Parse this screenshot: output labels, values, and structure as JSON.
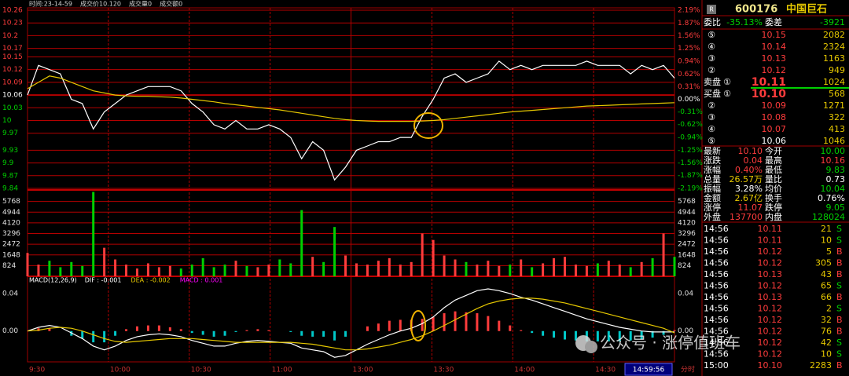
{
  "header": {
    "info": [
      "时间:23-14-59",
      "成交价10.120",
      "成交量0",
      "成交额0"
    ]
  },
  "chart_data": [
    {
      "type": "line",
      "series": [
        {
          "color": "#ffffff",
          "values": [
            10.06,
            10.13,
            10.12,
            10.11,
            10.05,
            10.04,
            9.98,
            10.02,
            10.04,
            10.06,
            10.07,
            10.08,
            10.08,
            10.08,
            10.07,
            10.04,
            10.02,
            9.99,
            9.98,
            10.0,
            9.98,
            9.98,
            9.99,
            9.98,
            9.96,
            9.91,
            9.95,
            9.93,
            9.86,
            9.89,
            9.93,
            9.94,
            9.95,
            9.95,
            9.96,
            9.96,
            10.01,
            10.05,
            10.1,
            10.11,
            10.09,
            10.1,
            10.11,
            10.14,
            10.12,
            10.13,
            10.12,
            10.13,
            10.13,
            10.13,
            10.13,
            10.14,
            10.13,
            10.13,
            10.13,
            10.11,
            10.13,
            10.12,
            10.13,
            10.1
          ]
        },
        {
          "color": "#e6c800",
          "values": [
            10.075,
            10.09,
            10.105,
            10.1,
            10.09,
            10.08,
            10.07,
            10.065,
            10.06,
            10.058,
            10.057,
            10.057,
            10.056,
            10.055,
            10.053,
            10.05,
            10.047,
            10.044,
            10.04,
            10.037,
            10.034,
            10.031,
            10.028,
            10.025,
            10.021,
            10.017,
            10.013,
            10.009,
            10.005,
            10.002,
            10.0,
            9.999,
            9.998,
            9.998,
            9.998,
            9.998,
            9.999,
            10.0,
            10.002,
            10.005,
            10.008,
            10.011,
            10.014,
            10.017,
            10.02,
            10.022,
            10.024,
            10.026,
            10.028,
            10.03,
            10.032,
            10.034,
            10.035,
            10.036,
            10.037,
            10.038,
            10.039,
            10.04,
            10.041,
            10.042
          ]
        }
      ],
      "ylim": [
        9.84,
        10.26
      ],
      "yticks": [
        10.26,
        10.23,
        10.2,
        10.17,
        10.15,
        10.12,
        10.09,
        10.06,
        10.03,
        10.0,
        9.97,
        9.93,
        9.9,
        9.87,
        9.84
      ],
      "y2lim": [
        -2.19,
        2.19
      ],
      "y2ticks": [
        {
          "value": 2.19,
          "label": "2.19%"
        },
        {
          "value": 1.87,
          "label": "1.87%"
        },
        {
          "value": 1.56,
          "label": "1.56%"
        },
        {
          "value": 1.25,
          "label": "1.25%"
        },
        {
          "value": 0.94,
          "label": "0.94%"
        },
        {
          "value": 0.62,
          "label": "0.62%"
        },
        {
          "value": 0.31,
          "label": "0.31%"
        },
        {
          "value": 0,
          "label": "0.00%"
        },
        {
          "value": -0.31,
          "label": "-0.31%"
        },
        {
          "value": -0.62,
          "label": "-0.62%"
        },
        {
          "value": -0.94,
          "label": "-0.94%"
        },
        {
          "value": -1.25,
          "label": "-1.25%"
        },
        {
          "value": -1.56,
          "label": "-1.56%"
        },
        {
          "value": -1.87,
          "label": "-1.87%"
        },
        {
          "value": -2.19,
          "label": "-2.19%"
        }
      ],
      "grid": true,
      "up_color": "#ff3c3c",
      "down_color": "#00d000",
      "flat_color": "#ffffff"
    },
    {
      "type": "bar",
      "values": [
        1800,
        900,
        1200,
        700,
        1100,
        800,
        6500,
        2200,
        1300,
        900,
        600,
        1000,
        700,
        800,
        600,
        900,
        1400,
        700,
        900,
        1200,
        800,
        700,
        900,
        1300,
        1000,
        5100,
        1500,
        1100,
        3800,
        1600,
        1000,
        900,
        1200,
        1400,
        900,
        1100,
        3300,
        2800,
        1600,
        1300,
        1100,
        900,
        1200,
        800,
        900,
        1300,
        700,
        1000,
        1400,
        1500,
        900,
        800,
        1000,
        1200,
        900,
        700,
        1100,
        1400,
        3300,
        1500
      ],
      "up_color": "#ff3c3c",
      "down_color": "#00d000",
      "ylim": [
        0,
        6592
      ],
      "yticks": [
        824,
        1648,
        2472,
        3296,
        4120,
        4944,
        5768
      ],
      "grid": true
    },
    {
      "type": "macd",
      "title": "MACD(12,26,9)",
      "legend": [
        {
          "text": "DIF : -0.001",
          "color": "#ffffff"
        },
        {
          "text": "DEA : -0.002",
          "color": "#e6c800"
        },
        {
          "text": "MACD : 0.001",
          "color": "#ff00ff"
        }
      ],
      "series": [
        {
          "color": "#ffffff",
          "values": [
            0.0,
            0.004,
            0.006,
            0.004,
            -0.002,
            -0.008,
            -0.016,
            -0.02,
            -0.016,
            -0.01,
            -0.006,
            -0.004,
            -0.003,
            -0.004,
            -0.006,
            -0.01,
            -0.013,
            -0.016,
            -0.016,
            -0.013,
            -0.011,
            -0.01,
            -0.011,
            -0.012,
            -0.013,
            -0.018,
            -0.02,
            -0.022,
            -0.028,
            -0.026,
            -0.02,
            -0.014,
            -0.009,
            -0.004,
            0.0,
            0.003,
            0.008,
            0.015,
            0.025,
            0.033,
            0.038,
            0.043,
            0.045,
            0.043,
            0.04,
            0.036,
            0.033,
            0.029,
            0.025,
            0.021,
            0.017,
            0.013,
            0.01,
            0.007,
            0.004,
            0.002,
            0.0,
            -0.001,
            -0.001,
            -0.001
          ]
        },
        {
          "color": "#e6c800",
          "values": [
            0.0,
            0.001,
            0.003,
            0.004,
            0.003,
            0.0,
            -0.004,
            -0.008,
            -0.011,
            -0.012,
            -0.011,
            -0.01,
            -0.009,
            -0.008,
            -0.008,
            -0.008,
            -0.009,
            -0.01,
            -0.011,
            -0.012,
            -0.012,
            -0.012,
            -0.012,
            -0.012,
            -0.012,
            -0.013,
            -0.014,
            -0.016,
            -0.018,
            -0.02,
            -0.02,
            -0.019,
            -0.017,
            -0.015,
            -0.012,
            -0.009,
            -0.005,
            0.0,
            0.006,
            0.012,
            0.018,
            0.024,
            0.029,
            0.032,
            0.034,
            0.035,
            0.035,
            0.034,
            0.032,
            0.03,
            0.027,
            0.024,
            0.021,
            0.018,
            0.015,
            0.012,
            0.009,
            0.006,
            0.003,
            -0.002
          ]
        }
      ],
      "histogram": {
        "up_color": "#ff3c3c",
        "down_color": "#00c8c8",
        "values": [
          0,
          0.003,
          0.003,
          0,
          -0.005,
          -0.008,
          -0.012,
          -0.012,
          -0.005,
          0.002,
          0.005,
          0.006,
          0.006,
          0.004,
          0.002,
          -0.002,
          -0.004,
          -0.006,
          -0.005,
          -0.001,
          0.001,
          0.002,
          0.001,
          0,
          -0.001,
          -0.005,
          -0.006,
          -0.006,
          -0.01,
          -0.006,
          0,
          0.005,
          0.008,
          0.011,
          0.012,
          0.012,
          0.013,
          0.015,
          0.019,
          0.021,
          0.02,
          0.019,
          0.016,
          0.011,
          0.006,
          0.001,
          -0.002,
          -0.005,
          -0.007,
          -0.009,
          -0.01,
          -0.011,
          -0.011,
          -0.011,
          -0.011,
          -0.01,
          -0.009,
          -0.007,
          -0.004,
          0.001
        ]
      },
      "ylim": [
        -0.032,
        0.055
      ],
      "yticks": [
        {
          "value": 0,
          "label": "0.00"
        },
        0.04
      ],
      "xticks": [
        "9:30",
        "10:00",
        "10:30",
        "11:00",
        "13:00",
        "13:30",
        "14:00",
        "14:30"
      ]
    }
  ],
  "footer": {
    "time": "14:59:56",
    "mode": "分时"
  },
  "watermark": "公众号 · 涨停值班车",
  "quote": {
    "badge": "R",
    "code": "600176",
    "name": "中国巨石",
    "ratio": {
      "k1": "委比",
      "v1": "-35.13%",
      "k2": "委差",
      "v2": "-3921"
    },
    "sell": [
      {
        "num": "⑤",
        "price": "10.15",
        "vol": "2082"
      },
      {
        "num": "④",
        "price": "10.14",
        "vol": "2324"
      },
      {
        "num": "③",
        "price": "10.13",
        "vol": "1163"
      },
      {
        "num": "②",
        "price": "10.12",
        "vol": "949"
      },
      {
        "label": "卖盘",
        "num": "①",
        "price": "10.11",
        "vol": "1024"
      }
    ],
    "buy": [
      {
        "label": "买盘",
        "num": "①",
        "price": "10.10",
        "vol": "568"
      },
      {
        "num": "②",
        "price": "10.09",
        "vol": "1271"
      },
      {
        "num": "③",
        "price": "10.08",
        "vol": "322"
      },
      {
        "num": "④",
        "price": "10.07",
        "vol": "413"
      },
      {
        "num": "⑤",
        "price": "10.06",
        "vol": "1046"
      }
    ],
    "stats": [
      {
        "k1": "最新",
        "v1": "10.10",
        "c1": "#ff3c3c",
        "k2": "今开",
        "v2": "10.00",
        "c2": "#00d000"
      },
      {
        "k1": "涨跌",
        "v1": "0.04",
        "c1": "#ff3c3c",
        "k2": "最高",
        "v2": "10.16",
        "c2": "#ff3c3c"
      },
      {
        "k1": "涨幅",
        "v1": "0.40%",
        "c1": "#ff3c3c",
        "k2": "最低",
        "v2": "9.83",
        "c2": "#00d000"
      },
      {
        "k1": "总量",
        "v1": "26.57万",
        "c1": "#e6c800",
        "k2": "量比",
        "v2": "0.73",
        "c2": "#ffffff"
      },
      {
        "k1": "振幅",
        "v1": "3.28%",
        "c1": "#ffffff",
        "k2": "均价",
        "v2": "10.04",
        "c2": "#00d000"
      },
      {
        "k1": "金额",
        "v1": "2.67亿",
        "c1": "#e6c800",
        "k2": "换手",
        "v2": "0.76%",
        "c2": "#ffffff"
      },
      {
        "k1": "涨停",
        "v1": "11.07",
        "c1": "#ff3c3c",
        "k2": "跌停",
        "v2": "9.05",
        "c2": "#00d000"
      },
      {
        "k1": "外盘",
        "v1": "137700",
        "c1": "#ff3c3c",
        "k2": "内盘",
        "v2": "128024",
        "c2": "#00d000"
      }
    ],
    "trades": [
      {
        "t": "14:56",
        "p": "10.11",
        "v": "21",
        "s": "S",
        "c": "#00d000"
      },
      {
        "t": "14:56",
        "p": "10.11",
        "v": "10",
        "s": "S",
        "c": "#00d000"
      },
      {
        "t": "14:56",
        "p": "10.12",
        "v": "5",
        "s": "B",
        "c": "#ff3c3c"
      },
      {
        "t": "14:56",
        "p": "10.12",
        "v": "305",
        "s": "B",
        "c": "#ff3c3c"
      },
      {
        "t": "14:56",
        "p": "10.13",
        "v": "43",
        "s": "B",
        "c": "#ff3c3c"
      },
      {
        "t": "14:56",
        "p": "10.12",
        "v": "65",
        "s": "S",
        "c": "#00d000"
      },
      {
        "t": "14:56",
        "p": "10.13",
        "v": "66",
        "s": "B",
        "c": "#ff3c3c"
      },
      {
        "t": "14:56",
        "p": "10.12",
        "v": "2",
        "s": "S",
        "c": "#00d000"
      },
      {
        "t": "14:56",
        "p": "10.12",
        "v": "32",
        "s": "B",
        "c": "#ff3c3c"
      },
      {
        "t": "14:56",
        "p": "10.12",
        "v": "76",
        "s": "B",
        "c": "#ff3c3c"
      },
      {
        "t": "14:56",
        "p": "10.12",
        "v": "42",
        "s": "S",
        "c": "#00d000"
      },
      {
        "t": "14:56",
        "p": "10.12",
        "v": "10",
        "s": "S",
        "c": "#00d000"
      },
      {
        "t": "15:00",
        "p": "10.10",
        "v": "2283",
        "s": "B",
        "c": "#ff3c3c"
      }
    ]
  }
}
